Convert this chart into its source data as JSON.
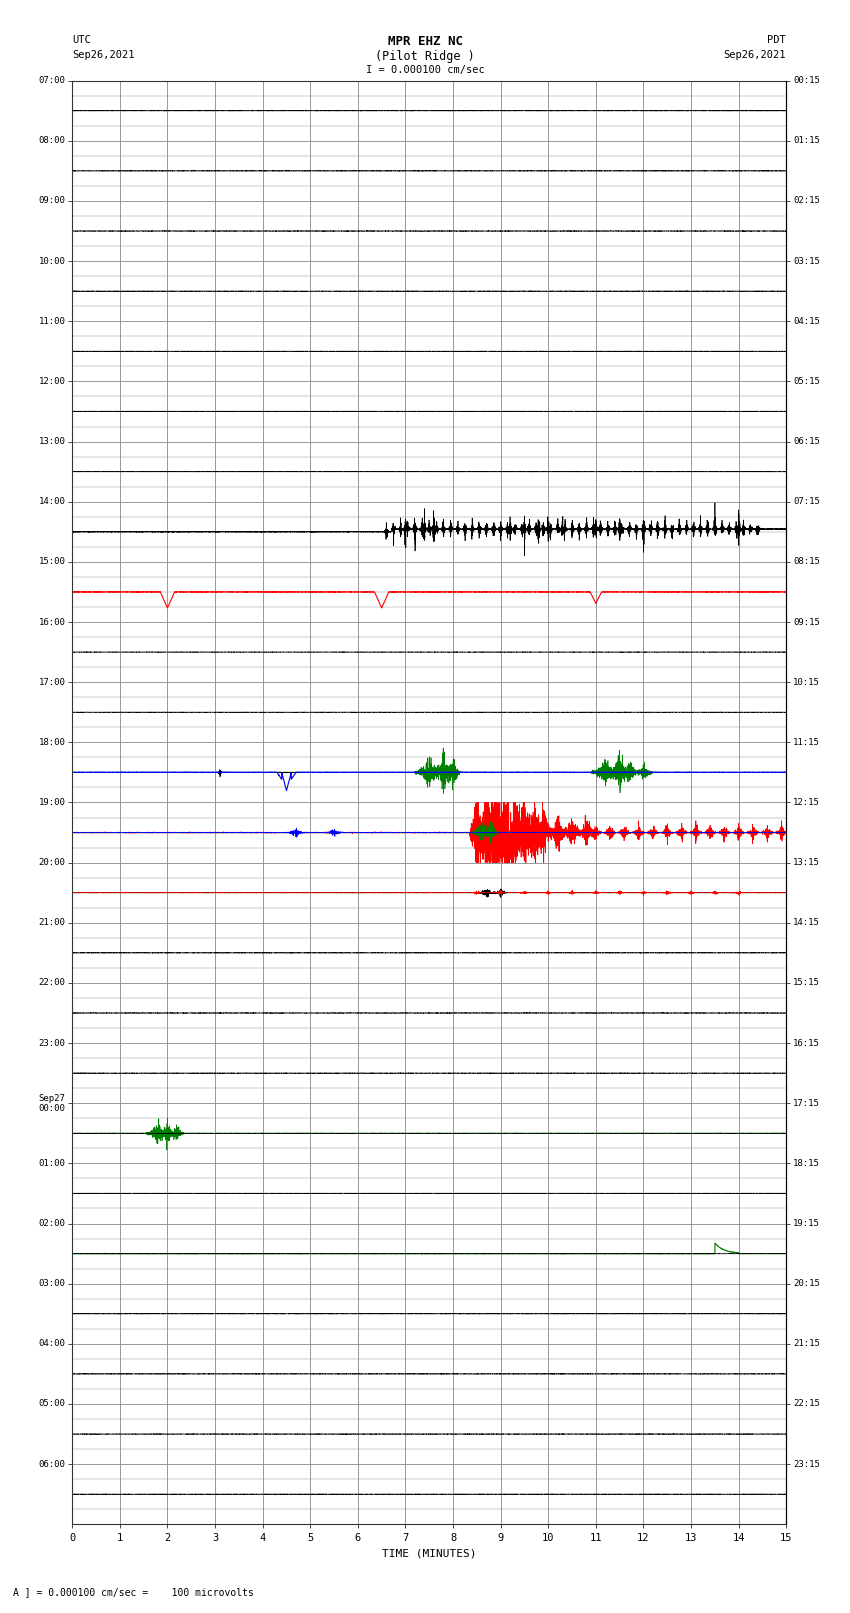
{
  "title_line1": "MPR EHZ NC",
  "title_line2": "(Pilot Ridge )",
  "scale_label": "I = 0.000100 cm/sec",
  "left_label_top": "UTC",
  "left_label_date": "Sep26,2021",
  "right_label_top": "PDT",
  "right_label_date": "Sep26,2021",
  "bottom_label": "TIME (MINUTES)",
  "footnote": "A ] = 0.000100 cm/sec =    100 microvolts",
  "utc_times": [
    "07:00",
    "08:00",
    "09:00",
    "10:00",
    "11:00",
    "12:00",
    "13:00",
    "14:00",
    "15:00",
    "16:00",
    "17:00",
    "18:00",
    "19:00",
    "20:00",
    "21:00",
    "22:00",
    "23:00",
    "Sep27\n00:00",
    "01:00",
    "02:00",
    "03:00",
    "04:00",
    "05:00",
    "06:00"
  ],
  "pdt_times": [
    "00:15",
    "01:15",
    "02:15",
    "03:15",
    "04:15",
    "05:15",
    "06:15",
    "07:15",
    "08:15",
    "09:15",
    "10:15",
    "11:15",
    "12:15",
    "13:15",
    "14:15",
    "15:15",
    "16:15",
    "17:15",
    "18:15",
    "19:15",
    "20:15",
    "21:15",
    "22:15",
    "23:15"
  ],
  "n_rows": 24,
  "n_cols": 15,
  "bg_color": "#ffffff",
  "grid_color": "#888888",
  "fig_width": 8.5,
  "fig_height": 16.13
}
